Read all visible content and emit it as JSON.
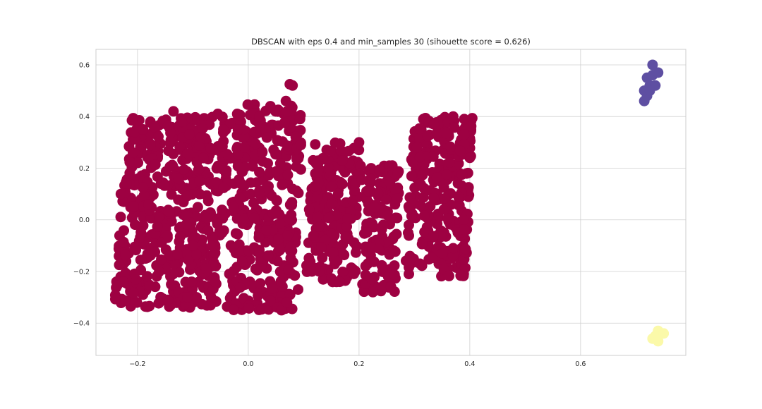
{
  "chart_data": {
    "type": "scatter",
    "title": "DBSCAN with eps 0.4 and min_samples 30 (sihouette score = 0.626)",
    "xlabel": "",
    "ylabel": "",
    "xlim": [
      -0.275,
      0.79
    ],
    "ylim": [
      -0.525,
      0.66
    ],
    "x_ticks": [
      -0.2,
      0.0,
      0.2,
      0.4,
      0.6
    ],
    "x_tick_labels": [
      "−0.2",
      "0.0",
      "0.2",
      "0.4",
      "0.6"
    ],
    "y_ticks": [
      -0.4,
      -0.2,
      0.0,
      0.2,
      0.4,
      0.6
    ],
    "y_tick_labels": [
      "−0.4",
      "−0.2",
      "0.0",
      "0.2",
      "0.4",
      "0.6"
    ],
    "grid": true,
    "legend": false,
    "marker": "large filled circle",
    "series": [
      {
        "color": "#9e0142",
        "clusters": [
          {
            "x": [
              -0.23,
              -0.04
            ],
            "y": [
              -0.34,
              0.4
            ]
          },
          {
            "x": [
              -0.03,
              0.09
            ],
            "y": [
              -0.35,
              0.45
            ]
          },
          {
            "x": [
              0.11,
              0.2
            ],
            "y": [
              -0.25,
              0.3
            ]
          },
          {
            "x": [
              0.21,
              0.27
            ],
            "y": [
              -0.28,
              0.21
            ]
          },
          {
            "x": [
              0.29,
              0.4
            ],
            "y": [
              -0.22,
              0.4
            ]
          }
        ],
        "points": [
          [
            -0.21,
            0.385
          ],
          [
            -0.205,
            0.34
          ],
          [
            -0.19,
            0.35
          ],
          [
            -0.17,
            0.36
          ],
          [
            -0.145,
            0.365
          ],
          [
            -0.135,
            0.42
          ],
          [
            -0.11,
            0.395
          ],
          [
            -0.12,
            0.38
          ],
          [
            -0.085,
            0.32
          ],
          [
            -0.055,
            0.41
          ],
          [
            -0.045,
            0.35
          ],
          [
            -0.02,
            0.41
          ],
          [
            0.02,
            0.4
          ],
          [
            0.04,
            0.44
          ],
          [
            0.065,
            0.375
          ],
          [
            0.07,
            0.42
          ],
          [
            0.068,
            0.46
          ],
          [
            0.075,
            0.525
          ],
          [
            0.08,
            0.52
          ],
          [
            0.095,
            0.29
          ],
          [
            0.095,
            0.195
          ],
          [
            0.11,
            0.04
          ],
          [
            0.115,
            -0.2
          ],
          [
            0.12,
            0.13
          ],
          [
            0.145,
            0.2
          ],
          [
            0.17,
            0.23
          ],
          [
            0.2,
            0.3
          ],
          [
            0.205,
            0.155
          ],
          [
            0.165,
            -0.24
          ],
          [
            0.225,
            -0.28
          ],
          [
            0.26,
            0.21
          ],
          [
            0.27,
            0.18
          ],
          [
            0.29,
            -0.02
          ],
          [
            0.29,
            -0.21
          ],
          [
            0.305,
            0.28
          ],
          [
            0.335,
            0.37
          ],
          [
            0.37,
            0.4
          ],
          [
            0.39,
            0.39
          ],
          [
            0.39,
            0.33
          ],
          [
            0.4,
            0.24
          ],
          [
            0.37,
            -0.11
          ],
          [
            0.35,
            -0.13
          ],
          [
            0.31,
            -0.17
          ],
          [
            -0.14,
            -0.33
          ],
          [
            -0.145,
            -0.31
          ],
          [
            -0.11,
            -0.3
          ],
          [
            -0.06,
            -0.24
          ],
          [
            0.06,
            -0.35
          ],
          [
            0.07,
            -0.32
          ],
          [
            0.09,
            -0.27
          ],
          [
            -0.18,
            0.06
          ],
          [
            -0.22,
            0.14
          ],
          [
            -0.23,
            0.1
          ],
          [
            0.02,
            0.1
          ],
          [
            -0.1,
            -0.1
          ]
        ]
      },
      {
        "color": "#5e4fa2",
        "points": [
          [
            0.715,
            0.46
          ],
          [
            0.72,
            0.48
          ],
          [
            0.715,
            0.5
          ],
          [
            0.725,
            0.52
          ],
          [
            0.72,
            0.55
          ],
          [
            0.73,
            0.56
          ],
          [
            0.74,
            0.57
          ],
          [
            0.73,
            0.6
          ],
          [
            0.735,
            0.52
          ],
          [
            0.725,
            0.5
          ]
        ]
      },
      {
        "color": "#fbf9a9",
        "points": [
          [
            0.74,
            -0.43
          ],
          [
            0.745,
            -0.44
          ],
          [
            0.735,
            -0.45
          ],
          [
            0.73,
            -0.46
          ],
          [
            0.74,
            -0.47
          ],
          [
            0.75,
            -0.44
          ]
        ]
      }
    ]
  }
}
